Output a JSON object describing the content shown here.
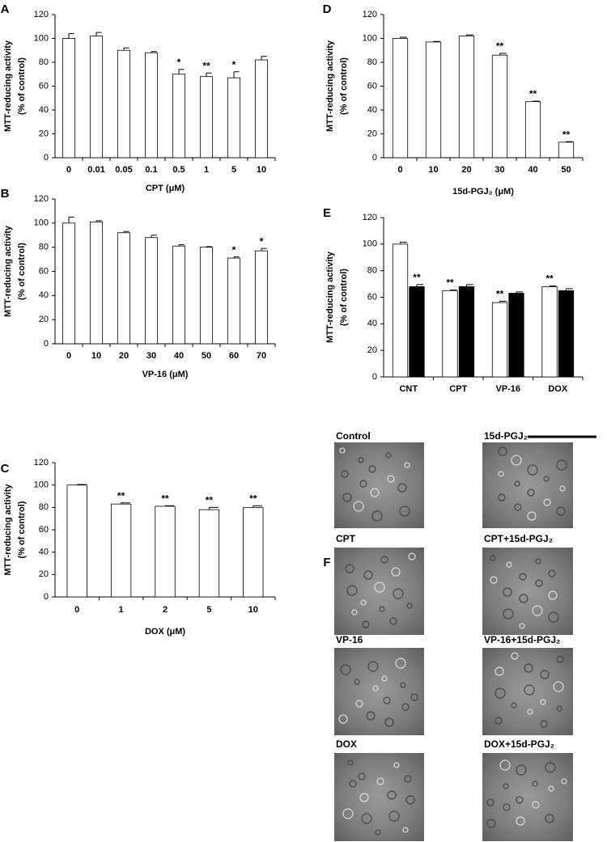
{
  "chart_data": [
    {
      "type": "bar",
      "panel": "A",
      "ylabel": [
        "MTT-reducing activity",
        "(% of control)"
      ],
      "xlabel": "CPT (μM)",
      "categories": [
        "0",
        "0.01",
        "0.05",
        "0.1",
        "0.5",
        "1",
        "5",
        "10"
      ],
      "values": [
        100,
        102,
        90,
        88,
        70,
        68,
        67,
        82
      ],
      "errors": [
        4,
        3,
        2,
        1,
        4,
        3,
        5,
        3
      ],
      "annotations": [
        null,
        null,
        null,
        null,
        "*",
        "**",
        "*",
        null
      ],
      "color": "#ffffff",
      "ylim": [
        0,
        120
      ],
      "yticks": [
        0,
        20,
        40,
        60,
        80,
        100,
        120
      ]
    },
    {
      "type": "bar",
      "panel": "B",
      "ylabel": [
        "MTT-reducing activity",
        "(% of control)"
      ],
      "xlabel": "VP-16 (μM)",
      "categories": [
        "0",
        "10",
        "20",
        "30",
        "40",
        "50",
        "60",
        "70"
      ],
      "values": [
        100,
        101,
        92,
        88,
        81,
        80,
        71,
        77
      ],
      "errors": [
        5,
        1,
        1,
        2,
        1,
        0.5,
        1,
        2
      ],
      "annotations": [
        null,
        null,
        null,
        null,
        null,
        null,
        "*",
        "*"
      ],
      "color": "#ffffff",
      "ylim": [
        0,
        120
      ],
      "yticks": [
        0,
        20,
        40,
        60,
        80,
        100,
        120
      ]
    },
    {
      "type": "bar",
      "panel": "C",
      "ylabel": [
        "MTT-reducing activity",
        "(% of control)"
      ],
      "xlabel": "DOX (μM)",
      "categories": [
        "0",
        "1",
        "2",
        "5",
        "10"
      ],
      "values": [
        100,
        83,
        81,
        78,
        80
      ],
      "errors": [
        0.5,
        1,
        0.5,
        2,
        1.5
      ],
      "annotations": [
        null,
        "**",
        "**",
        "**",
        "**"
      ],
      "color": "#ffffff",
      "ylim": [
        0,
        120
      ],
      "yticks": [
        0,
        20,
        40,
        60,
        80,
        100,
        120
      ]
    },
    {
      "type": "bar",
      "panel": "D",
      "ylabel": [
        "MTT-reducing activity",
        "(% of control)"
      ],
      "xlabel": "15d-PGJ₂ (μM)",
      "categories": [
        "0",
        "10",
        "20",
        "30",
        "40",
        "50"
      ],
      "values": [
        100,
        97,
        102,
        86,
        47,
        13
      ],
      "errors": [
        1,
        0.5,
        1,
        1.5,
        0.5,
        0.5
      ],
      "annotations": [
        null,
        null,
        null,
        "**",
        "**",
        "**"
      ],
      "color": "#ffffff",
      "ylim": [
        0,
        120
      ],
      "yticks": [
        0,
        20,
        40,
        60,
        80,
        100,
        120
      ]
    },
    {
      "type": "bar",
      "panel": "E",
      "ylabel": [
        "MTT-reducing activity",
        "(% of control)"
      ],
      "categories": [
        "CNT",
        "CPT",
        "VP-16",
        "DOX"
      ],
      "series": [
        {
          "color": "#ffffff",
          "values": [
            100,
            65,
            56,
            68
          ],
          "errors": [
            1.5,
            0.5,
            1,
            0.5
          ],
          "annotations": [
            null,
            "**",
            "**",
            "**"
          ]
        },
        {
          "color": "#000000",
          "values": [
            68,
            68,
            63,
            65
          ],
          "errors": [
            1.5,
            1.5,
            1,
            1.5
          ],
          "annotations": [
            "**",
            null,
            null,
            null
          ]
        }
      ],
      "ylim": [
        0,
        120
      ],
      "yticks": [
        0,
        20,
        40,
        60,
        80,
        100,
        120
      ]
    }
  ],
  "figure_f": {
    "panel": "F",
    "labels": [
      "Control",
      "15d-PGJ₂",
      "CPT",
      "CPT+15d-PGJ₂",
      "VP-16",
      "VP-16+15d-PGJ₂",
      "DOX",
      "DOX+15d-PGJ₂"
    ]
  }
}
